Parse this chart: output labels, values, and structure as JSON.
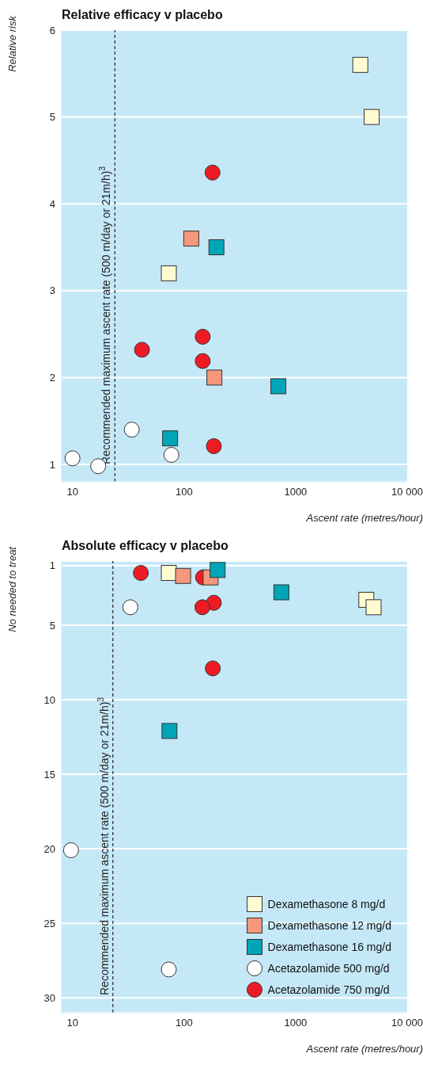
{
  "chart_data": [
    {
      "type": "scatter",
      "title": "Relative efficacy v placebo",
      "xlabel": "Ascent rate (metres/hour)",
      "ylabel": "Relative risk",
      "log": "x",
      "grid": "y",
      "legend": false,
      "xlim": [
        8,
        10000
      ],
      "xticks": [
        10,
        100,
        1000,
        {
          "value": 10000,
          "label": "10 000"
        }
      ],
      "ylim": [
        0.8,
        6
      ],
      "yticks": [
        1,
        2,
        3,
        4,
        5,
        6
      ],
      "ref_lines": [
        {
          "axis": "x",
          "value": 24,
          "label": "Recommended maximum ascent rate (500 m/day or 21m/h)$^{3}$",
          "line_style": "dashed",
          "color": "#333333"
        }
      ],
      "series": [
        {
          "color": "#fffbd0",
          "marker": "square",
          "x": [
            3800,
            4800,
            73
          ],
          "values": [
            5.6,
            5.0,
            3.2
          ]
        },
        {
          "color": "#f5977a",
          "marker": "square",
          "x": [
            116,
            187
          ],
          "values": [
            3.6,
            2.0
          ]
        },
        {
          "color": "#00a6b8",
          "marker": "square",
          "x": [
            195,
            700,
            75
          ],
          "values": [
            3.5,
            1.9,
            1.3
          ]
        },
        {
          "color": "#ffffff",
          "marker": "circle",
          "x": [
            34,
            10,
            17,
            77
          ],
          "values": [
            1.4,
            1.07,
            0.98,
            1.11
          ]
        },
        {
          "color": "#ed1c24",
          "marker": "circle",
          "x": [
            180,
            147,
            42,
            147,
            185
          ],
          "values": [
            4.36,
            2.47,
            2.32,
            2.19,
            1.21
          ]
        }
      ]
    },
    {
      "type": "scatter",
      "title": "Absolute efficacy v placebo",
      "xlabel": "Ascent rate (metres/hour)",
      "ylabel": "No needed to treat",
      "log": "x",
      "grid": "y",
      "legend": "bottom right",
      "xlim": [
        8,
        10000
      ],
      "xticks": [
        10,
        100,
        1000,
        {
          "value": 10000,
          "label": "10 000"
        }
      ],
      "ylim": [
        31,
        0.7
      ],
      "yticks": [
        1,
        5,
        10,
        15,
        20,
        25,
        30
      ],
      "ref_lines": [
        {
          "axis": "x",
          "value": 23,
          "label": "Recommended maximum ascent rate (500 m/day or 21m/h)$^{3}$",
          "line_style": "dashed",
          "color": "#333333"
        }
      ],
      "series": [
        {
          "name": "Dexamethasone 8 mg/d",
          "color": "#fffbd0",
          "marker": "square",
          "x": [
            73,
            4300,
            5000
          ],
          "values": [
            1.5,
            3.3,
            3.8
          ]
        },
        {
          "name": "Dexamethasone 12 mg/d",
          "color": "#f5977a",
          "marker": "square",
          "x": [
            98,
            173
          ],
          "values": [
            1.7,
            1.8
          ]
        },
        {
          "name": "Dexamethasone 16 mg/d",
          "color": "#00a6b8",
          "marker": "square",
          "x": [
            200,
            745,
            74
          ],
          "values": [
            1.3,
            2.8,
            12.1
          ]
        },
        {
          "name": "Acetazolamide 500 mg/d",
          "color": "#ffffff",
          "marker": "circle",
          "x": [
            33,
            9.7,
            73
          ],
          "values": [
            3.8,
            20.1,
            28.1
          ]
        },
        {
          "name": "Acetazolamide 750 mg/d",
          "color": "#ed1c24",
          "marker": "circle",
          "x": [
            41,
            148,
            185,
            146,
            181
          ],
          "values": [
            1.5,
            1.8,
            3.5,
            3.8,
            7.9
          ]
        }
      ]
    }
  ]
}
